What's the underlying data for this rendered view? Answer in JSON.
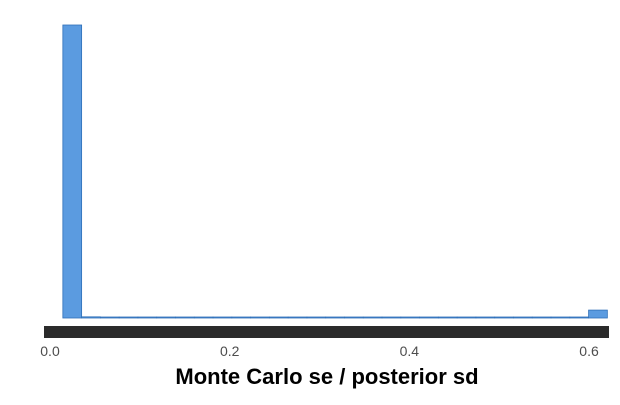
{
  "chart_data": {
    "type": "bar",
    "subtype": "histogram",
    "xlabel": "Monte Carlo se / posterior sd",
    "ylabel": "",
    "title": "",
    "xlim": [
      0.0,
      0.62
    ],
    "ylim": [
      0,
      1.0
    ],
    "x_ticks": [
      {
        "value": 0.0,
        "label": "0.0"
      },
      {
        "value": 0.2,
        "label": "0.2"
      },
      {
        "value": 0.4,
        "label": "0.4"
      },
      {
        "value": 0.6,
        "label": "0.6"
      }
    ],
    "bin_width": 0.0209,
    "bins": [
      {
        "x0": 0.0143,
        "x1": 0.0352,
        "value": 1.0
      },
      {
        "x0": 0.0352,
        "x1": 0.0561,
        "value": 0.004
      },
      {
        "x0": 0.0561,
        "x1": 0.077,
        "value": 0.002
      },
      {
        "x0": 0.077,
        "x1": 0.0979,
        "value": 0.002
      },
      {
        "x0": 0.0979,
        "x1": 0.1188,
        "value": 0.002
      },
      {
        "x0": 0.1188,
        "x1": 0.1397,
        "value": 0.002
      },
      {
        "x0": 0.1397,
        "x1": 0.1606,
        "value": 0.002
      },
      {
        "x0": 0.1606,
        "x1": 0.1815,
        "value": 0.002
      },
      {
        "x0": 0.1815,
        "x1": 0.2024,
        "value": 0.002
      },
      {
        "x0": 0.2024,
        "x1": 0.2233,
        "value": 0.002
      },
      {
        "x0": 0.2233,
        "x1": 0.2442,
        "value": 0.002
      },
      {
        "x0": 0.2442,
        "x1": 0.2651,
        "value": 0.002
      },
      {
        "x0": 0.2651,
        "x1": 0.286,
        "value": 0.002
      },
      {
        "x0": 0.286,
        "x1": 0.3069,
        "value": 0.002
      },
      {
        "x0": 0.3069,
        "x1": 0.3278,
        "value": 0.002
      },
      {
        "x0": 0.3278,
        "x1": 0.3487,
        "value": 0.002
      },
      {
        "x0": 0.3487,
        "x1": 0.3696,
        "value": 0.002
      },
      {
        "x0": 0.3696,
        "x1": 0.3905,
        "value": 0.002
      },
      {
        "x0": 0.3905,
        "x1": 0.4114,
        "value": 0.002
      },
      {
        "x0": 0.4114,
        "x1": 0.4323,
        "value": 0.002
      },
      {
        "x0": 0.4323,
        "x1": 0.4532,
        "value": 0.002
      },
      {
        "x0": 0.4532,
        "x1": 0.4741,
        "value": 0.002
      },
      {
        "x0": 0.4741,
        "x1": 0.495,
        "value": 0.002
      },
      {
        "x0": 0.495,
        "x1": 0.5159,
        "value": 0.002
      },
      {
        "x0": 0.5159,
        "x1": 0.5368,
        "value": 0.002
      },
      {
        "x0": 0.5368,
        "x1": 0.5577,
        "value": 0.002
      },
      {
        "x0": 0.5577,
        "x1": 0.5786,
        "value": 0.002
      },
      {
        "x0": 0.5786,
        "x1": 0.5995,
        "value": 0.002
      },
      {
        "x0": 0.5995,
        "x1": 0.6204,
        "value": 0.027
      }
    ],
    "grid": false,
    "colors": {
      "bar_fill": "#5b9be0",
      "bar_stroke": "#2f6fb8",
      "axis_band": "#2b2b2b"
    }
  }
}
